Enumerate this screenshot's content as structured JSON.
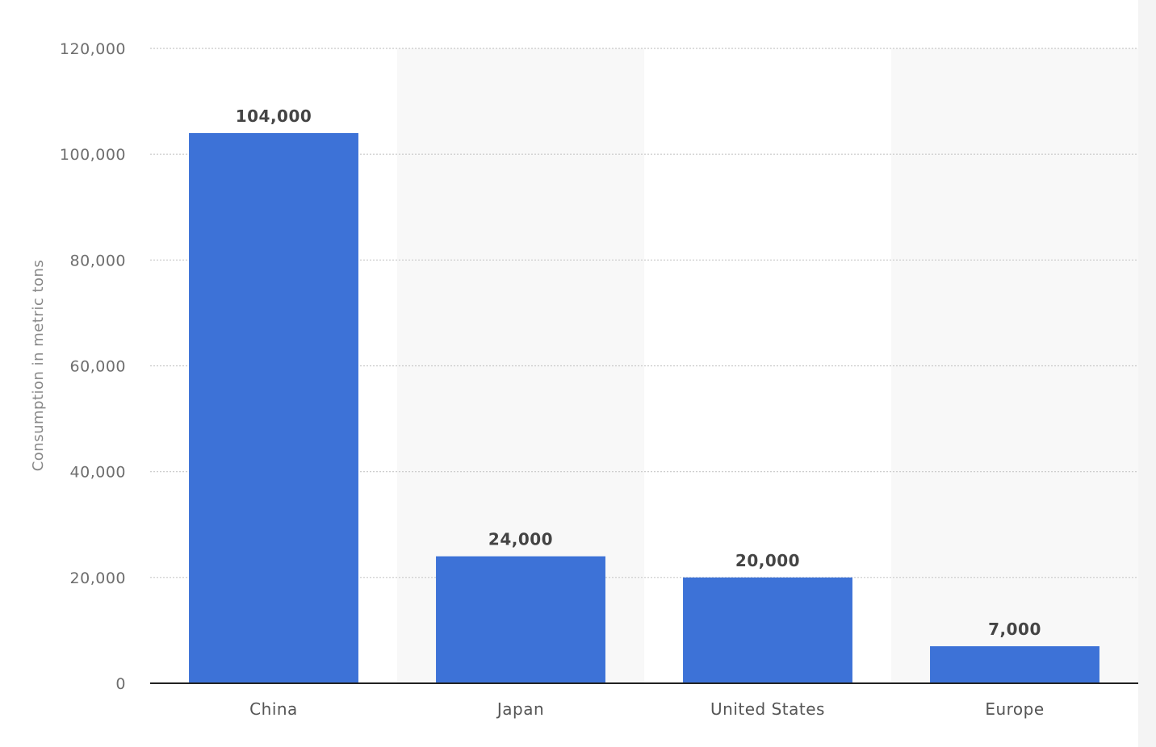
{
  "chart_data": {
    "type": "bar",
    "categories": [
      "China",
      "Japan",
      "United States",
      "Europe"
    ],
    "values": [
      104000,
      24000,
      20000,
      7000
    ],
    "value_labels": [
      "104,000",
      "24,000",
      "20,000",
      "7,000"
    ],
    "xlabel": "",
    "ylabel": "Consumption in metric tons",
    "ylim": [
      0,
      120000
    ],
    "yticks": [
      0,
      20000,
      40000,
      60000,
      80000,
      100000,
      120000
    ],
    "ytick_labels": [
      "0",
      "20,000",
      "40,000",
      "60,000",
      "80,000",
      "100,000",
      "120,000"
    ],
    "grid": true,
    "legend": "none",
    "colors": {
      "bar": "#3d72d7",
      "alt_band": "#f8f8f8"
    }
  }
}
